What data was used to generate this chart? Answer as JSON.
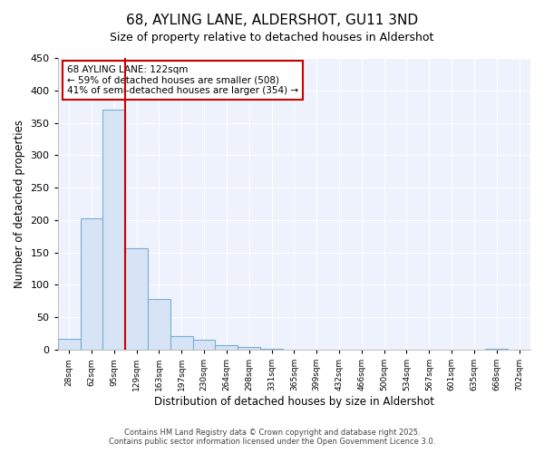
{
  "title": "68, AYLING LANE, ALDERSHOT, GU11 3ND",
  "subtitle": "Size of property relative to detached houses in Aldershot",
  "xlabel": "Distribution of detached houses by size in Aldershot",
  "ylabel": "Number of detached properties",
  "bin_labels": [
    "28sqm",
    "62sqm",
    "95sqm",
    "129sqm",
    "163sqm",
    "197sqm",
    "230sqm",
    "264sqm",
    "298sqm",
    "331sqm",
    "365sqm",
    "399sqm",
    "432sqm",
    "466sqm",
    "500sqm",
    "534sqm",
    "567sqm",
    "601sqm",
    "635sqm",
    "668sqm",
    "702sqm"
  ],
  "bar_heights": [
    17,
    203,
    370,
    157,
    79,
    21,
    15,
    7,
    4,
    2,
    0,
    0,
    0,
    0,
    0,
    0,
    0,
    0,
    0,
    2,
    0
  ],
  "bar_color": "#d6e4f5",
  "bar_edgecolor": "#7aadd4",
  "vline_color": "#cc0000",
  "annotation_box_edgecolor": "#cc0000",
  "annotation_line1": "68 AYLING LANE: 122sqm",
  "annotation_line2": "← 59% of detached houses are smaller (508)",
  "annotation_line3": "41% of semi-detached houses are larger (354) →",
  "ylim": [
    0,
    450
  ],
  "yticks": [
    0,
    50,
    100,
    150,
    200,
    250,
    300,
    350,
    400,
    450
  ],
  "background_color": "#ffffff",
  "plot_bg_color": "#eef2fc",
  "grid_color": "#ffffff",
  "footer1": "Contains HM Land Registry data © Crown copyright and database right 2025.",
  "footer2": "Contains public sector information licensed under the Open Government Licence 3.0.",
  "vline_x_bin_index": 2.5
}
